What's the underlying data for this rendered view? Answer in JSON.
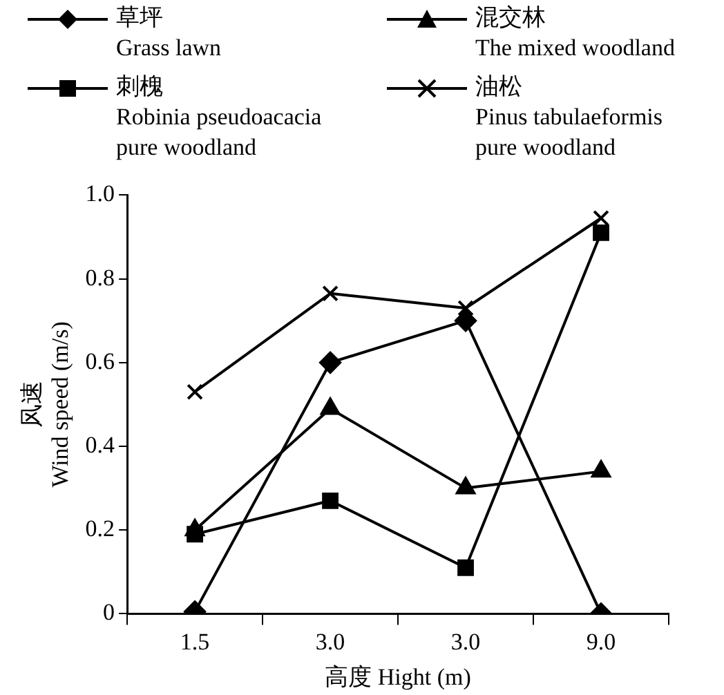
{
  "chart_data": {
    "type": "line",
    "xlabel": "高度 Hight (m)",
    "ylabel": "风速\nWind speed (m/s)",
    "categories": [
      "1.5",
      "3.0",
      "3.0",
      "9.0"
    ],
    "series": [
      {
        "name": "草坪\nGrass lawn",
        "color": "#000000",
        "marker": "diamond",
        "values": [
          0.005,
          0.6,
          0.7,
          0
        ]
      },
      {
        "name": "刺槐\nRobinia pseudoacacia\npure woodland",
        "color": "#000000",
        "marker": "square",
        "values": [
          0.19,
          0.27,
          0.11,
          0.91
        ]
      },
      {
        "name": "混交林\nThe mixed woodland",
        "color": "#000000",
        "marker": "triangle",
        "values": [
          0.2,
          0.49,
          0.3,
          0.34
        ]
      },
      {
        "name": "油松\nPinus tabulaeformis\npure woodland",
        "color": "#000000",
        "marker": "cross",
        "values": [
          0.53,
          0.765,
          0.73,
          0.945
        ]
      }
    ],
    "ylim": [
      0,
      1
    ],
    "yticks": [
      0,
      0.2,
      0.4,
      0.6,
      0.8,
      {
        "value": 1,
        "label": "1.0"
      }
    ],
    "grid": false,
    "legend": "top",
    "line_style": "solid"
  }
}
